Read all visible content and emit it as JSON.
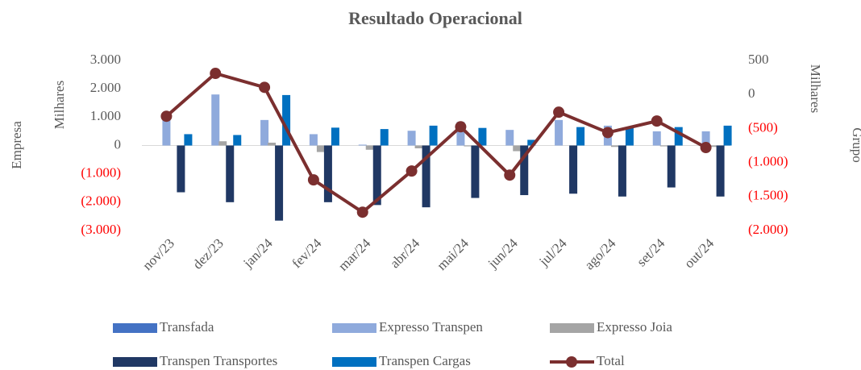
{
  "chart_data": {
    "type": "bar",
    "title": "Resultado Operacional",
    "categories": [
      "nov/23",
      "dez/23",
      "jan/24",
      "fev/24",
      "mar/24",
      "abr/24",
      "mai/24",
      "jun/24",
      "jul/24",
      "ago/24",
      "set/24",
      "out/24"
    ],
    "y_label_outer": "Empresa",
    "y_label": "Milhares",
    "y2_label": "Milhares",
    "y2_label_outer": "Grupo",
    "ylim": [
      -3000,
      3000
    ],
    "yticks": [
      {
        "value": 3000,
        "label": "3.000"
      },
      {
        "value": 2000,
        "label": "2.000"
      },
      {
        "value": 1000,
        "label": "1.000"
      },
      0,
      {
        "value": -1000,
        "label": "(1.000)"
      },
      {
        "value": -2000,
        "label": "(2.000)"
      },
      {
        "value": -3000,
        "label": "(3.000)"
      }
    ],
    "y2lim": [
      -2000,
      500
    ],
    "y2ticks": [
      500,
      0,
      {
        "value": -500,
        "label": "(500)"
      },
      {
        "value": -1000,
        "label": "(1.000)"
      },
      {
        "value": -1500,
        "label": "(1.500)"
      },
      {
        "value": -2000,
        "label": "(2.000)"
      }
    ],
    "negative_tick_color": "#ff0000",
    "series": [
      {
        "name": "Transfada",
        "color": "#4472c4",
        "values": [
          0,
          0,
          0,
          0,
          0,
          0,
          0,
          0,
          0,
          0,
          0,
          0
        ]
      },
      {
        "name": "Expresso Transpen",
        "color": "#8faadc",
        "values": [
          900,
          1800,
          900,
          400,
          30,
          520,
          830,
          550,
          900,
          700,
          500,
          500
        ]
      },
      {
        "name": "Expresso Joia",
        "color": "#a5a5a5",
        "values": [
          0,
          150,
          100,
          -230,
          -150,
          -100,
          -30,
          -200,
          0,
          -50,
          -30,
          -50
        ]
      },
      {
        "name": "Transpen Transportes",
        "color": "#203864",
        "values": [
          -1650,
          -2000,
          -2650,
          -2000,
          -2100,
          -2180,
          -1850,
          -1750,
          -1700,
          -1800,
          -1480,
          -1800
        ]
      },
      {
        "name": "Transpen Cargas",
        "color": "#0070c0",
        "values": [
          400,
          370,
          1780,
          630,
          580,
          700,
          620,
          200,
          650,
          620,
          650,
          700
        ]
      },
      {
        "name": "Total",
        "color": "#7b2f2f",
        "type": "line",
        "axis": "y2",
        "values": [
          -320,
          310,
          105,
          -1255,
          -1730,
          -1125,
          -475,
          -1185,
          -260,
          -560,
          -390,
          -780
        ]
      }
    ]
  }
}
